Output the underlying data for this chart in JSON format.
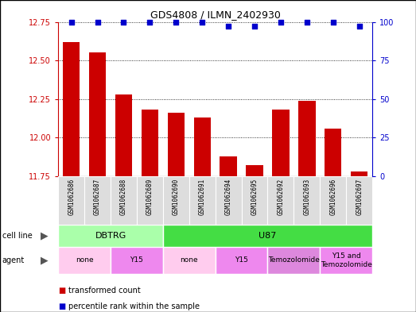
{
  "title": "GDS4808 / ILMN_2402930",
  "samples": [
    "GSM1062686",
    "GSM1062687",
    "GSM1062688",
    "GSM1062689",
    "GSM1062690",
    "GSM1062691",
    "GSM1062694",
    "GSM1062695",
    "GSM1062692",
    "GSM1062693",
    "GSM1062696",
    "GSM1062697"
  ],
  "red_values": [
    12.62,
    12.55,
    12.28,
    12.18,
    12.16,
    12.13,
    11.88,
    11.82,
    12.18,
    12.24,
    12.06,
    11.78
  ],
  "blue_values": [
    100,
    100,
    100,
    100,
    100,
    100,
    97,
    97,
    100,
    100,
    100,
    97
  ],
  "ylim_left": [
    11.75,
    12.75
  ],
  "ylim_right": [
    0,
    100
  ],
  "yticks_left": [
    11.75,
    12.0,
    12.25,
    12.5,
    12.75
  ],
  "yticks_right": [
    0,
    25,
    50,
    75,
    100
  ],
  "cell_line_groups": [
    {
      "label": "DBTRG",
      "start": 0,
      "end": 3,
      "color": "#aaffaa"
    },
    {
      "label": "U87",
      "start": 4,
      "end": 11,
      "color": "#44dd44"
    }
  ],
  "agent_groups": [
    {
      "label": "none",
      "start": 0,
      "end": 1,
      "color": "#ffccee"
    },
    {
      "label": "Y15",
      "start": 2,
      "end": 3,
      "color": "#ee88ee"
    },
    {
      "label": "none",
      "start": 4,
      "end": 5,
      "color": "#ffccee"
    },
    {
      "label": "Y15",
      "start": 6,
      "end": 7,
      "color": "#ee88ee"
    },
    {
      "label": "Temozolomide",
      "start": 8,
      "end": 9,
      "color": "#dd88dd"
    },
    {
      "label": "Y15 and\nTemozolomide",
      "start": 10,
      "end": 11,
      "color": "#ee88ee"
    }
  ],
  "bar_color": "#cc0000",
  "dot_color": "#0000cc",
  "legend_red": "transformed count",
  "legend_blue": "percentile rank within the sample",
  "background_color": "#ffffff",
  "bar_bottom": 11.75,
  "label_bg_color": "#dddddd"
}
